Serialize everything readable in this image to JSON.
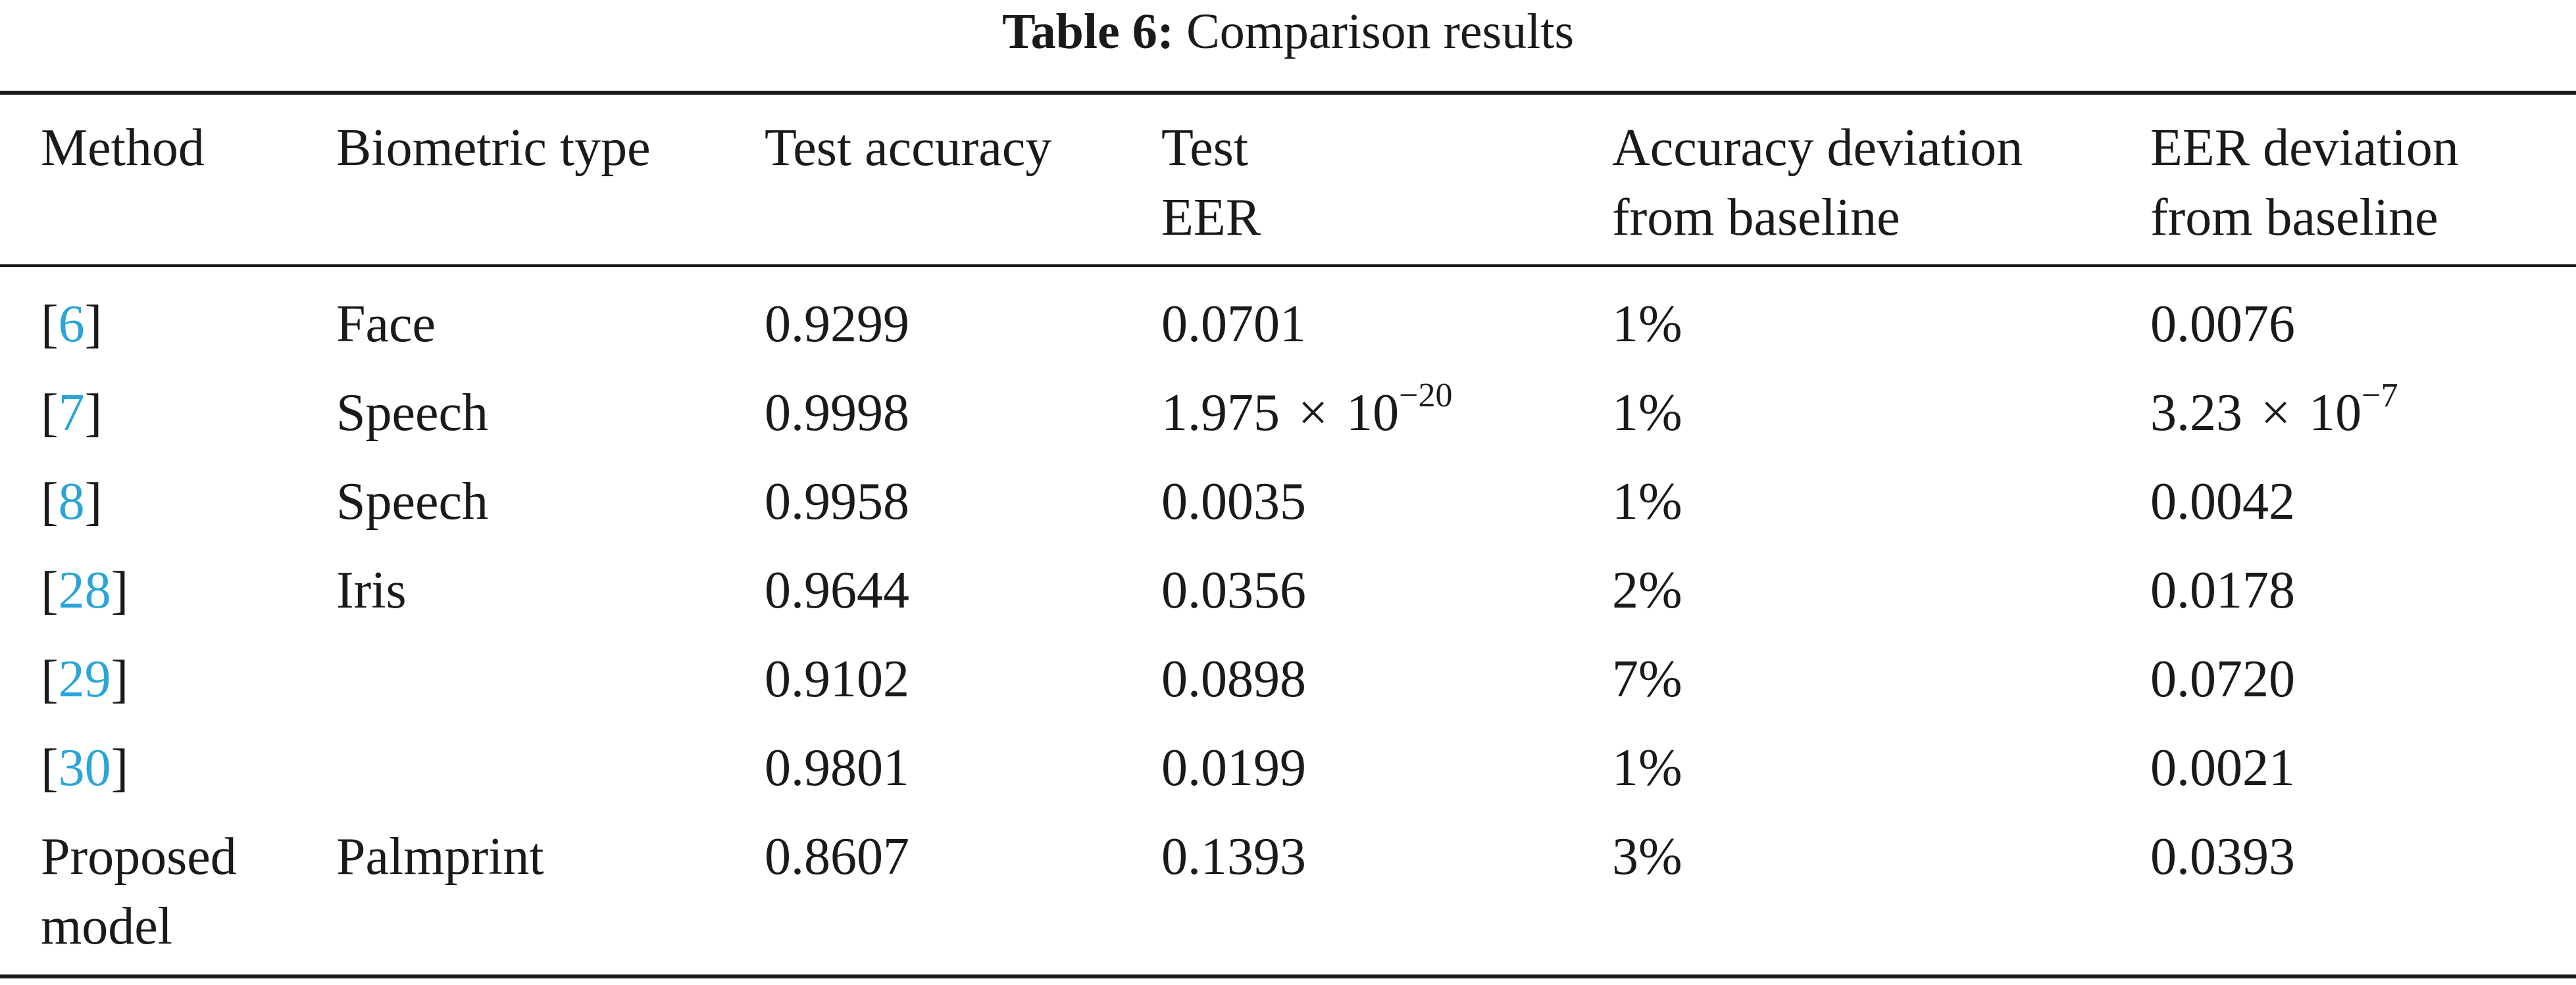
{
  "caption": {
    "label": "Table 6:",
    "text": "Comparison results"
  },
  "columns": [
    {
      "line1": "Method",
      "line2": ""
    },
    {
      "line1": "Biometric type",
      "line2": ""
    },
    {
      "line1": "Test accuracy",
      "line2": ""
    },
    {
      "line1": "Test",
      "line2": "EER"
    },
    {
      "line1": "Accuracy deviation",
      "line2": "from baseline"
    },
    {
      "line1": "EER deviation",
      "line2": "from baseline"
    }
  ],
  "rows": [
    {
      "method_cite": "6",
      "method_text": "",
      "biometric": "Face",
      "accuracy": "0.9299",
      "eer": "0.0701",
      "acc_dev": "1%",
      "eer_dev": "0.0076"
    },
    {
      "method_cite": "7",
      "method_text": "",
      "biometric": "Speech",
      "accuracy": "0.9998",
      "eer_mantissa": "1.975",
      "eer_times": "×",
      "eer_base": "10",
      "eer_exp": "−20",
      "acc_dev": "1%",
      "eer_dev_mantissa": "3.23",
      "eer_dev_times": "×",
      "eer_dev_base": "10",
      "eer_dev_exp": "−7"
    },
    {
      "method_cite": "8",
      "method_text": "",
      "biometric": "Speech",
      "accuracy": "0.9958",
      "eer": "0.0035",
      "acc_dev": "1%",
      "eer_dev": "0.0042"
    },
    {
      "method_cite": "28",
      "method_text": "",
      "biometric": "Iris",
      "accuracy": "0.9644",
      "eer": "0.0356",
      "acc_dev": "2%",
      "eer_dev": "0.0178"
    },
    {
      "method_cite": "29",
      "method_text": "",
      "biometric": "",
      "accuracy": "0.9102",
      "eer": "0.0898",
      "acc_dev": "7%",
      "eer_dev": "0.0720"
    },
    {
      "method_cite": "30",
      "method_text": "",
      "biometric": "",
      "accuracy": "0.9801",
      "eer": "0.0199",
      "acc_dev": "1%",
      "eer_dev": "0.0021"
    },
    {
      "method_line1": "Proposed",
      "method_line2": "model",
      "biometric": "Palmprint",
      "accuracy": "0.8607",
      "eer": "0.1393",
      "acc_dev": "3%",
      "eer_dev": "0.0393"
    }
  ]
}
